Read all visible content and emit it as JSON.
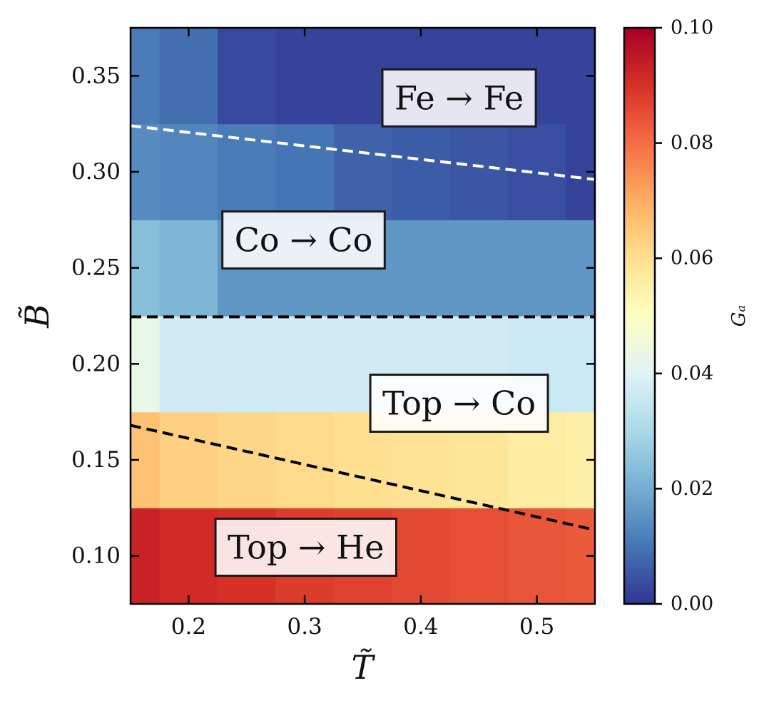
{
  "chart_data": {
    "type": "heatmap",
    "xlabel": "T̃",
    "ylabel": "B̃",
    "colorbar_label": "Gₐ",
    "colormap": "RdYlBu_r",
    "xlim": [
      0.15,
      0.55
    ],
    "ylim": [
      0.075,
      0.375
    ],
    "clim": [
      0.0,
      0.1
    ],
    "xticks": [
      0.2,
      0.3,
      0.4,
      0.5
    ],
    "xtick_labels": [
      "0.2",
      "0.3",
      "0.4",
      "0.5"
    ],
    "yticks": [
      0.1,
      0.15,
      0.2,
      0.25,
      0.3,
      0.35
    ],
    "ytick_labels": [
      "0.10",
      "0.15",
      "0.20",
      "0.25",
      "0.30",
      "0.35"
    ],
    "colorbar_ticks": [
      0.0,
      0.02,
      0.04,
      0.06,
      0.08,
      0.1
    ],
    "colorbar_tick_labels": [
      "0.00",
      "0.02",
      "0.04",
      "0.06",
      "0.08",
      "0.10"
    ],
    "grid": false,
    "x_centers": [
      0.15,
      0.2,
      0.25,
      0.3,
      0.35,
      0.4,
      0.45,
      0.5,
      0.55
    ],
    "y_centers": [
      0.1,
      0.15,
      0.2,
      0.25,
      0.3,
      0.35
    ],
    "values": [
      [
        0.093,
        0.091,
        0.09,
        0.088,
        0.087,
        0.086,
        0.085,
        0.084,
        0.083
      ],
      [
        0.066,
        0.063,
        0.062,
        0.061,
        0.06,
        0.059,
        0.058,
        0.056,
        0.055
      ],
      [
        0.043,
        0.037,
        0.037,
        0.037,
        0.037,
        0.037,
        0.037,
        0.036,
        0.036
      ],
      [
        0.024,
        0.022,
        0.016,
        0.016,
        0.016,
        0.016,
        0.016,
        0.016,
        0.016
      ],
      [
        0.014,
        0.013,
        0.011,
        0.01,
        0.007,
        0.006,
        0.005,
        0.004,
        0.002
      ],
      [
        0.011,
        0.009,
        0.003,
        0.002,
        0.002,
        0.002,
        0.002,
        0.002,
        0.002
      ]
    ],
    "boundaries": [
      {
        "style": "dashed",
        "color": "#ffffff",
        "x": [
          0.15,
          0.55
        ],
        "y": [
          0.324,
          0.296
        ]
      },
      {
        "style": "dashed",
        "color": "#000000",
        "x": [
          0.15,
          0.55
        ],
        "y": [
          0.2245,
          0.2245
        ]
      },
      {
        "style": "dashed",
        "color": "#000000",
        "x": [
          0.15,
          0.55
        ],
        "y": [
          0.168,
          0.1135
        ]
      }
    ],
    "annotations": [
      {
        "text": "Fe → Fe",
        "x": 0.433,
        "y": 0.3385
      },
      {
        "text": "Co → Co",
        "x": 0.299,
        "y": 0.2645
      },
      {
        "text": "Top → Co",
        "x": 0.433,
        "y": 0.1795
      },
      {
        "text": "Top → He",
        "x": 0.301,
        "y": 0.1045
      }
    ]
  }
}
